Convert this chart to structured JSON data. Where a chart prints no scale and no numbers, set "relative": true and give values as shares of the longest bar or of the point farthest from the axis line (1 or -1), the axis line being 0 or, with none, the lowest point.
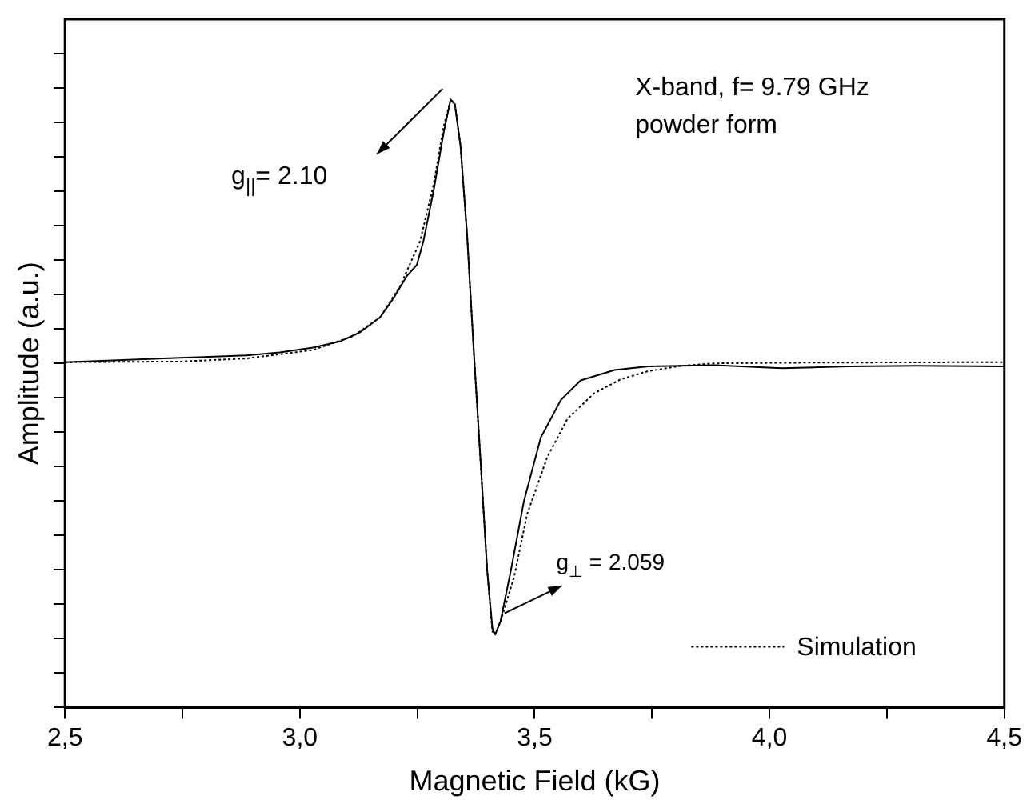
{
  "chart_data": {
    "type": "line",
    "relative": true,
    "xlabel": "Magnetic Field (kG)",
    "ylabel": "Amplitude (a.u.)",
    "xlim": [
      2.5,
      4.5
    ],
    "xticks": [
      {
        "value": 2.5,
        "label": "2,5"
      },
      {
        "value": 2.75,
        "label": null
      },
      {
        "value": 3.0,
        "label": "3,0"
      },
      {
        "value": 3.25,
        "label": null
      },
      {
        "value": 3.5,
        "label": "3,5"
      },
      {
        "value": 3.75,
        "label": null
      },
      {
        "value": 4.0,
        "label": "4,0"
      },
      {
        "value": 4.25,
        "label": null
      },
      {
        "value": 4.5,
        "label": "4,5"
      }
    ],
    "marker": "none",
    "grid": false,
    "legend": "bottom right",
    "series": [
      {
        "color": "#000000",
        "line_style": "solid",
        "x": [
          2.5,
          2.601,
          2.744,
          2.886,
          2.957,
          3.028,
          3.085,
          3.128,
          3.171,
          3.199,
          3.228,
          3.249,
          3.263,
          3.285,
          3.306,
          3.321,
          3.33,
          3.342,
          3.356,
          3.37,
          3.385,
          3.399,
          3.41,
          3.416,
          3.427,
          3.449,
          3.477,
          3.513,
          3.556,
          3.598,
          3.67,
          3.741,
          3.883,
          4.026,
          4.168,
          4.311,
          4.5
        ],
        "values": [
          0.568,
          0.571,
          0.575,
          0.579,
          0.584,
          0.592,
          0.602,
          0.617,
          0.642,
          0.673,
          0.71,
          0.728,
          0.767,
          0.851,
          0.945,
          1.0,
          0.992,
          0.924,
          0.778,
          0.59,
          0.402,
          0.224,
          0.13,
          0.12,
          0.141,
          0.224,
          0.339,
          0.444,
          0.506,
          0.538,
          0.555,
          0.561,
          0.563,
          0.558,
          0.561,
          0.562,
          0.561
        ]
      },
      {
        "name": "Simulation",
        "color": "#000000",
        "line_style": "dotted",
        "x": [
          2.5,
          2.744,
          2.886,
          3.028,
          3.114,
          3.171,
          3.214,
          3.256,
          3.285,
          3.306,
          3.321,
          3.33,
          3.342,
          3.356,
          3.37,
          3.385,
          3.399,
          3.41,
          3.416,
          3.427,
          3.456,
          3.484,
          3.527,
          3.57,
          3.627,
          3.684,
          3.741,
          3.812,
          3.883,
          4.026,
          4.5
        ],
        "values": [
          0.568,
          0.569,
          0.574,
          0.588,
          0.611,
          0.642,
          0.694,
          0.767,
          0.861,
          0.955,
          1.0,
          0.992,
          0.924,
          0.778,
          0.59,
          0.402,
          0.224,
          0.125,
          0.12,
          0.141,
          0.214,
          0.318,
          0.412,
          0.475,
          0.517,
          0.54,
          0.553,
          0.562,
          0.566,
          0.567,
          0.568
        ]
      }
    ],
    "annotations": [
      "X-band, f= 9.79 GHz",
      "powder form",
      "g$_{||}$= 2.10",
      "g$_{⊥}$ = 2.059"
    ]
  }
}
